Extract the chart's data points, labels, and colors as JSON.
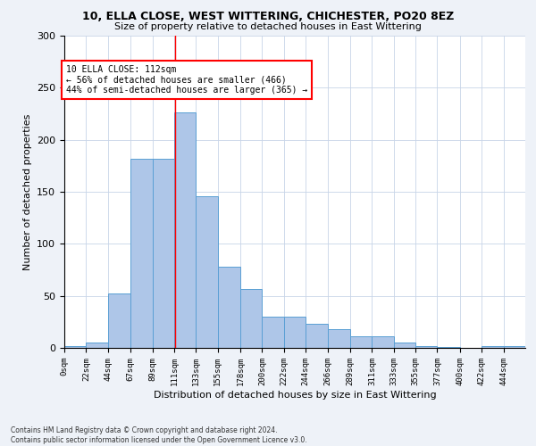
{
  "title1": "10, ELLA CLOSE, WEST WITTERING, CHICHESTER, PO20 8EZ",
  "title2": "Size of property relative to detached houses in East Wittering",
  "xlabel": "Distribution of detached houses by size in East Wittering",
  "ylabel": "Number of detached properties",
  "bin_edges": [
    0,
    22,
    44,
    67,
    89,
    111,
    133,
    155,
    178,
    200,
    222,
    244,
    266,
    289,
    311,
    333,
    355,
    377,
    400,
    422,
    444,
    466
  ],
  "bin_labels": [
    "0sqm",
    "22sqm",
    "44sqm",
    "67sqm",
    "89sqm",
    "111sqm",
    "133sqm",
    "155sqm",
    "178sqm",
    "200sqm",
    "222sqm",
    "244sqm",
    "266sqm",
    "289sqm",
    "311sqm",
    "333sqm",
    "355sqm",
    "377sqm",
    "400sqm",
    "422sqm",
    "444sqm"
  ],
  "bar_heights": [
    2,
    5,
    52,
    182,
    182,
    226,
    146,
    78,
    57,
    30,
    30,
    23,
    18,
    11,
    11,
    5,
    2,
    1,
    0,
    2,
    2
  ],
  "bar_color": "#aec6e8",
  "bar_edgecolor": "#5a9fd4",
  "ref_line_x": 112,
  "ref_line_color": "red",
  "annotation_text": "10 ELLA CLOSE: 112sqm\n← 56% of detached houses are smaller (466)\n44% of semi-detached houses are larger (365) →",
  "annotation_box_color": "white",
  "annotation_box_edgecolor": "red",
  "ylim": [
    0,
    300
  ],
  "yticks": [
    0,
    50,
    100,
    150,
    200,
    250,
    300
  ],
  "footnote": "Contains HM Land Registry data © Crown copyright and database right 2024.\nContains public sector information licensed under the Open Government Licence v3.0.",
  "bg_color": "#eef2f8",
  "plot_bg_color": "white",
  "grid_color": "#c8d4e8"
}
